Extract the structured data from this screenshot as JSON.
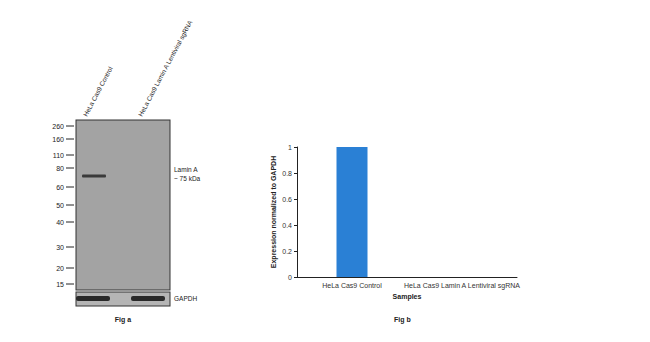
{
  "blot": {
    "lanes": [
      "HeLa Cas9 Control",
      "HeLa Cas9 Lamin A Lentiviral sgRNA"
    ],
    "markers": [
      260,
      160,
      110,
      80,
      60,
      50,
      40,
      30,
      20,
      15
    ],
    "target": {
      "label": "Lamin A",
      "size": "~ 75 kDa",
      "detected": [
        true,
        false
      ]
    },
    "loading_control": {
      "label": "GAPDH",
      "detected": [
        true,
        true
      ]
    },
    "caption": "Fig a"
  },
  "chart_data": {
    "type": "bar",
    "categories": [
      "HeLa Cas9 Control",
      "HeLa Cas9 Lamin A Lentiviral sgRNA"
    ],
    "values": [
      1,
      0
    ],
    "color": "#2a80d5",
    "x_label": "Samples",
    "y_label": "Expression normalized to GAPDH",
    "ylim": [
      0,
      1
    ],
    "yticks": [
      0,
      0.2,
      0.4,
      0.6,
      0.8,
      1
    ],
    "grid": false,
    "annotations": [
      "Fig b"
    ]
  }
}
